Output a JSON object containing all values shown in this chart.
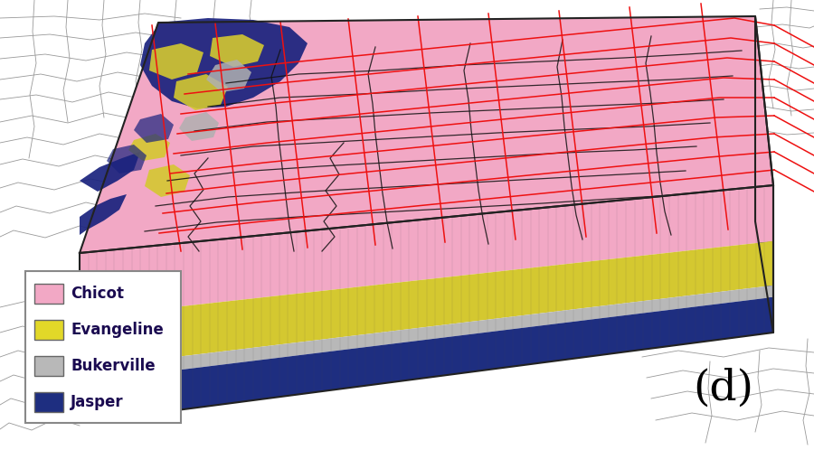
{
  "label_d": "(d)",
  "legend_entries": [
    {
      "label": "Chicot",
      "color": "#F2A8C5"
    },
    {
      "label": "Evangeline",
      "color": "#E2D828"
    },
    {
      "label": "Bukerville",
      "color": "#B8B8B8"
    },
    {
      "label": "Jasper",
      "color": "#1E2E80"
    }
  ],
  "layer_colors": {
    "chicot": "#F2A8C5",
    "chicot_side": "#D98AA8",
    "evangeline": "#D4C830",
    "evangeline_side": "#B0A820",
    "bukerville": "#B8B8B8",
    "bukerville_side": "#989898",
    "jasper": "#1E2E80",
    "jasper_side": "#141E60"
  },
  "red_line_color": "#EE1111",
  "background_color": "#FFFFFF"
}
